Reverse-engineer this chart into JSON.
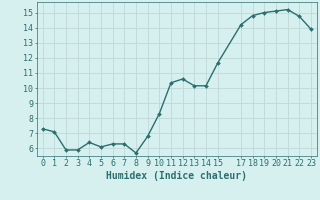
{
  "x": [
    0,
    1,
    2,
    3,
    4,
    5,
    6,
    7,
    8,
    9,
    10,
    11,
    12,
    13,
    14,
    15,
    17,
    18,
    19,
    20,
    21,
    22,
    23
  ],
  "y": [
    7.3,
    7.1,
    5.9,
    5.9,
    6.4,
    6.1,
    6.3,
    6.3,
    5.7,
    6.8,
    8.3,
    10.35,
    10.6,
    10.15,
    10.15,
    11.65,
    14.2,
    14.8,
    15.0,
    15.1,
    15.2,
    14.75,
    13.9
  ],
  "line_color": "#2d6e6e",
  "marker": "D",
  "marker_size": 2.0,
  "bg_color": "#d6f0f0",
  "grid_color": "#c0d8d8",
  "xlabel": "Humidex (Indice chaleur)",
  "ylim": [
    5.5,
    15.7
  ],
  "xlim": [
    -0.5,
    23.5
  ],
  "yticks": [
    6,
    7,
    8,
    9,
    10,
    11,
    12,
    13,
    14,
    15
  ],
  "xticks": [
    0,
    1,
    2,
    3,
    4,
    5,
    6,
    7,
    8,
    9,
    10,
    11,
    12,
    13,
    14,
    15,
    17,
    18,
    19,
    20,
    21,
    22,
    23
  ],
  "tick_color": "#2d6e6e",
  "label_color": "#2d6e6e",
  "line_width": 1.0,
  "xlabel_fontsize": 7.0,
  "tick_fontsize": 6.0
}
